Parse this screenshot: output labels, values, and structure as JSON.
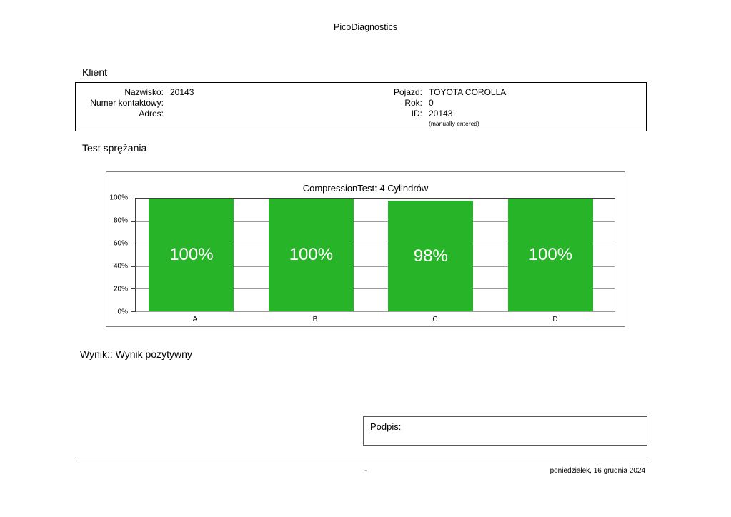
{
  "header": {
    "title": "PicoDiagnostics"
  },
  "client": {
    "section_label": "Klient",
    "fields_left": [
      {
        "label": "Nazwisko:",
        "value": "20143"
      },
      {
        "label": "Numer kontaktowy:",
        "value": ""
      },
      {
        "label": "Adres:",
        "value": ""
      }
    ],
    "fields_right": [
      {
        "label": "Pojazd:",
        "value": "TOYOTA COROLLA"
      },
      {
        "label": "Rok:",
        "value": "0"
      },
      {
        "label": "ID:",
        "value": "20143"
      }
    ],
    "note": "(manually entered)"
  },
  "test": {
    "section_label": "Test sprężania"
  },
  "chart_data": {
    "type": "bar",
    "title": "CompressionTest: 4 Cylindrów",
    "categories": [
      "A",
      "B",
      "C",
      "D"
    ],
    "values": [
      100,
      100,
      98,
      100
    ],
    "bar_labels": [
      "100%",
      "100%",
      "98%",
      "100%"
    ],
    "ylim": [
      0,
      100
    ],
    "ytick_labels": [
      "100%",
      "80%",
      "60%",
      "40%",
      "20%",
      "0%"
    ],
    "bar_color": "#28b428",
    "grid": true,
    "legend": false,
    "xlabel": "",
    "ylabel": ""
  },
  "result": {
    "text": "Wynik:: Wynik pozytywny"
  },
  "signature": {
    "label": "Podpis:"
  },
  "footer": {
    "center_text": "-",
    "date": "poniedziałek, 16 grudnia 2024"
  }
}
